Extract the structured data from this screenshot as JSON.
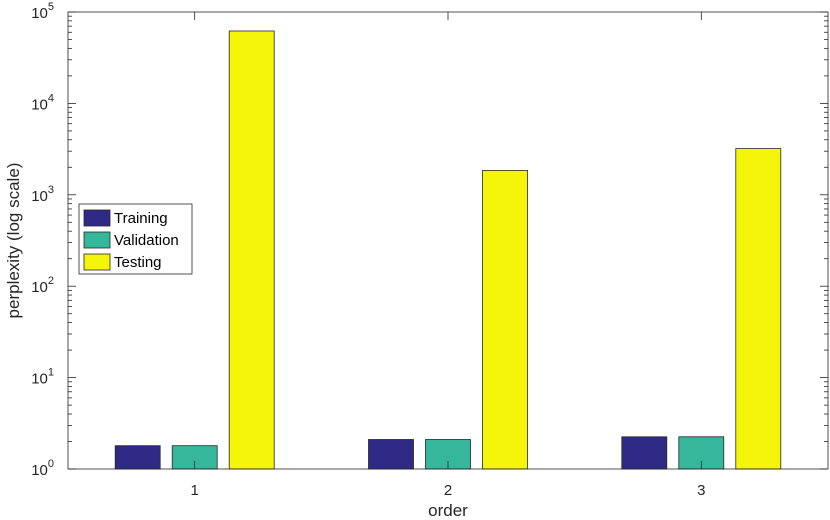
{
  "chart_data": {
    "type": "bar",
    "title": "",
    "xlabel": "order",
    "ylabel": "perplexity (log scale)",
    "y_scale": "log",
    "ylim": [
      1,
      100000
    ],
    "yticks": [
      1,
      10,
      100,
      1000,
      10000,
      100000
    ],
    "ytick_base": "10",
    "ytick_exponents": [
      "0",
      "1",
      "2",
      "3",
      "4",
      "5"
    ],
    "categories": [
      "1",
      "2",
      "3"
    ],
    "grid": false,
    "box": true,
    "legend_position": "center-left",
    "series": [
      {
        "name": "Training",
        "color": "#2f2a85",
        "values": [
          1.8,
          2.1,
          2.25
        ]
      },
      {
        "name": "Validation",
        "color": "#35b79b",
        "values": [
          1.8,
          2.1,
          2.25
        ]
      },
      {
        "name": "Testing",
        "color": "#f5f50a",
        "values": [
          62000,
          1850,
          3200
        ]
      }
    ]
  }
}
